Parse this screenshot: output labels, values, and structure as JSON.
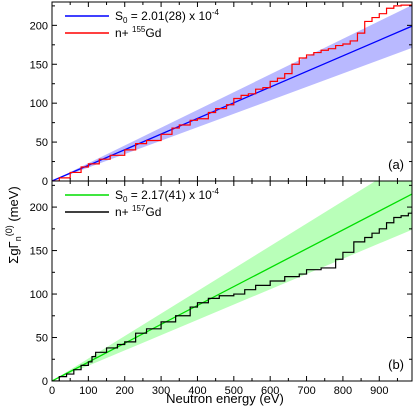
{
  "figure": {
    "ylabel_main": "ΣgΓ",
    "ylabel_sub": "n",
    "ylabel_sup": "(0)",
    "ylabel_unit": " (meV)",
    "xlabel": "Neutron energy (eV)",
    "x_ticks": [
      0,
      100,
      200,
      300,
      400,
      500,
      600,
      700,
      800,
      900
    ],
    "y_ticks": [
      0,
      50,
      100,
      150,
      200
    ]
  },
  "chart_data": [
    {
      "type": "line",
      "panel_label": "(a)",
      "xlim": [
        0,
        990
      ],
      "ylim": [
        0,
        230
      ],
      "grid": false,
      "legend_position": "top-left",
      "colors": {
        "fit": "#0000ff",
        "band": "#8080ff",
        "data": "#ff0000"
      },
      "legend": {
        "fit": {
          "prefix": "S",
          "sub": "0",
          "mid": " = 2.01(28) x 10",
          "sup": "-4"
        },
        "data": {
          "prefix": "n+ ",
          "sup": "155",
          "suffix": "Gd"
        }
      },
      "fit_line": {
        "x": [
          0,
          990
        ],
        "y": [
          0,
          199
        ]
      },
      "band": {
        "x": [
          0,
          990
        ],
        "upper": [
          0,
          226
        ],
        "lower": [
          0,
          171
        ]
      },
      "series": [
        {
          "x": [
            0,
            20,
            50,
            80,
            100,
            130,
            160,
            200,
            230,
            260,
            300,
            330,
            350,
            380,
            400,
            430,
            450,
            480,
            500,
            520,
            540,
            560,
            580,
            600,
            620,
            640,
            660,
            680,
            700,
            720,
            740,
            760,
            780,
            800,
            820,
            840,
            860,
            880,
            900,
            920,
            940,
            960,
            990
          ],
          "y": [
            0,
            4,
            11,
            18,
            22,
            28,
            33,
            40,
            48,
            52,
            60,
            68,
            72,
            78,
            80,
            88,
            93,
            98,
            106,
            110,
            112,
            118,
            120,
            128,
            132,
            138,
            150,
            158,
            162,
            165,
            168,
            170,
            174,
            176,
            180,
            190,
            205,
            210,
            215,
            222,
            225,
            226,
            228
          ]
        }
      ]
    },
    {
      "type": "line",
      "panel_label": "(b)",
      "xlim": [
        0,
        990
      ],
      "ylim": [
        0,
        230
      ],
      "grid": false,
      "legend_position": "top-left",
      "colors": {
        "fit": "#00dd00",
        "band": "#80ff80",
        "data": "#000000"
      },
      "legend": {
        "fit": {
          "prefix": "S",
          "sub": "0",
          "mid": " = 2.17(41) x 10",
          "sup": "-4"
        },
        "data": {
          "prefix": "n+ ",
          "sup": "157",
          "suffix": "Gd"
        }
      },
      "fit_line": {
        "x": [
          0,
          990
        ],
        "y": [
          0,
          215
        ]
      },
      "band": {
        "x": [
          0,
          990
        ],
        "upper": [
          0,
          256
        ],
        "lower": [
          0,
          174
        ]
      },
      "series": [
        {
          "x": [
            0,
            20,
            40,
            60,
            80,
            100,
            110,
            120,
            150,
            180,
            200,
            230,
            260,
            300,
            340,
            380,
            400,
            430,
            460,
            500,
            530,
            560,
            600,
            640,
            680,
            700,
            740,
            780,
            800,
            830,
            860,
            880,
            900,
            920,
            940,
            960,
            980,
            990
          ],
          "y": [
            0,
            5,
            8,
            13,
            18,
            22,
            28,
            33,
            38,
            42,
            45,
            55,
            60,
            68,
            75,
            85,
            90,
            95,
            98,
            100,
            105,
            110,
            115,
            120,
            123,
            128,
            130,
            140,
            148,
            160,
            165,
            170,
            175,
            182,
            188,
            190,
            193,
            196
          ]
        }
      ]
    }
  ]
}
